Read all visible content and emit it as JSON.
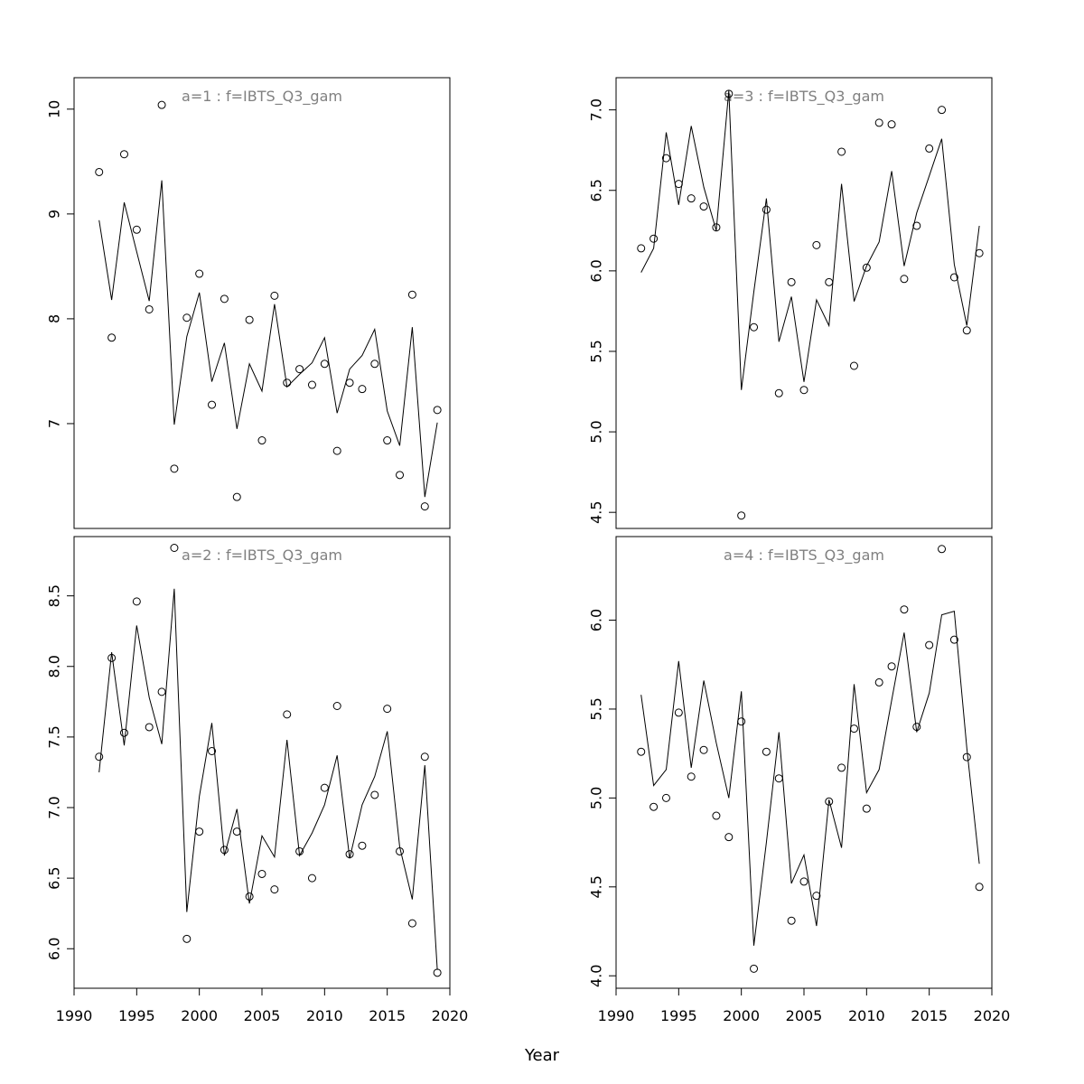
{
  "xlabel": "Year",
  "chart_data": [
    {
      "type": "line",
      "title": "a=1  :  f=IBTS_Q3_gam",
      "xlim": [
        1990,
        2020
      ],
      "ylim": [
        6.0,
        10.3
      ],
      "yticks": [
        7,
        8,
        9,
        10
      ],
      "ytick_labels": [
        "7",
        "8",
        "9",
        "10"
      ],
      "xticks": [],
      "xtick_labels": [],
      "x": [
        1992,
        1993,
        1994,
        1995,
        1996,
        1997,
        1998,
        1999,
        2000,
        2001,
        2002,
        2003,
        2004,
        2005,
        2006,
        2007,
        2008,
        2009,
        2010,
        2011,
        2012,
        2013,
        2014,
        2015,
        2016,
        2017,
        2018,
        2019
      ],
      "fitted": [
        8.94,
        8.18,
        9.11,
        8.64,
        8.17,
        9.32,
        6.99,
        7.83,
        8.25,
        7.4,
        7.77,
        6.95,
        7.57,
        7.31,
        8.14,
        7.35,
        7.47,
        7.58,
        7.82,
        7.1,
        7.52,
        7.65,
        7.9,
        7.12,
        6.79,
        7.92,
        6.3,
        7.01
      ],
      "observed": [
        9.4,
        7.82,
        9.57,
        8.85,
        8.09,
        10.04,
        6.57,
        8.01,
        8.43,
        7.18,
        8.19,
        6.3,
        7.99,
        6.84,
        8.22,
        7.39,
        7.52,
        7.37,
        7.57,
        6.74,
        7.39,
        7.33,
        7.57,
        6.84,
        6.51,
        8.23,
        6.21,
        7.13
      ]
    },
    {
      "type": "line",
      "title": "a=3  :  f=IBTS_Q3_gam",
      "xlim": [
        1990,
        2020
      ],
      "ylim": [
        4.4,
        7.2
      ],
      "yticks": [
        4.5,
        5.0,
        5.5,
        6.0,
        6.5,
        7.0
      ],
      "ytick_labels": [
        "4.5",
        "5.0",
        "5.5",
        "6.0",
        "6.5",
        "7.0"
      ],
      "xticks": [],
      "xtick_labels": [],
      "x": [
        1992,
        1993,
        1994,
        1995,
        1996,
        1997,
        1998,
        1999,
        2000,
        2001,
        2002,
        2003,
        2004,
        2005,
        2006,
        2007,
        2008,
        2009,
        2010,
        2011,
        2012,
        2013,
        2014,
        2015,
        2016,
        2017,
        2018,
        2019
      ],
      "fitted": [
        5.99,
        6.14,
        6.86,
        6.41,
        6.9,
        6.52,
        6.25,
        7.12,
        5.26,
        5.87,
        6.45,
        5.56,
        5.84,
        5.31,
        5.82,
        5.66,
        6.54,
        5.81,
        6.03,
        6.18,
        6.62,
        6.03,
        6.36,
        6.59,
        6.82,
        6.04,
        5.66,
        6.28
      ],
      "observed": [
        6.14,
        6.2,
        6.7,
        6.54,
        6.45,
        6.4,
        6.27,
        7.1,
        4.48,
        5.65,
        6.38,
        5.24,
        5.93,
        5.26,
        6.16,
        5.93,
        6.74,
        5.41,
        6.02,
        6.92,
        6.91,
        5.95,
        6.28,
        6.76,
        7.0,
        5.96,
        5.63,
        6.11
      ]
    },
    {
      "type": "line",
      "title": "a=2  :  f=IBTS_Q3_gam",
      "xlim": [
        1990,
        2020
      ],
      "ylim": [
        5.72,
        8.92
      ],
      "yticks": [
        6.0,
        6.5,
        7.0,
        7.5,
        8.0,
        8.5
      ],
      "ytick_labels": [
        "6.0",
        "6.5",
        "7.0",
        "7.5",
        "8.0",
        "8.5"
      ],
      "xticks": [
        1990,
        1995,
        2000,
        2005,
        2010,
        2015,
        2020
      ],
      "xtick_labels": [
        "1990",
        "1995",
        "2000",
        "2005",
        "2010",
        "2015",
        "2020"
      ],
      "x": [
        1992,
        1993,
        1994,
        1995,
        1996,
        1997,
        1998,
        1999,
        2000,
        2001,
        2002,
        2003,
        2004,
        2005,
        2006,
        2007,
        2008,
        2009,
        2010,
        2011,
        2012,
        2013,
        2014,
        2015,
        2016,
        2017,
        2018,
        2019
      ],
      "fitted": [
        7.25,
        8.1,
        7.44,
        8.29,
        7.78,
        7.45,
        8.55,
        6.26,
        7.08,
        7.6,
        6.66,
        6.99,
        6.32,
        6.8,
        6.65,
        7.48,
        6.66,
        6.82,
        7.02,
        7.37,
        6.64,
        7.02,
        7.22,
        7.54,
        6.72,
        6.35,
        7.3,
        5.85
      ],
      "observed": [
        7.36,
        8.06,
        7.53,
        8.46,
        7.57,
        7.82,
        8.84,
        6.07,
        6.83,
        7.4,
        6.7,
        6.83,
        6.37,
        6.53,
        6.42,
        7.66,
        6.69,
        6.5,
        7.14,
        7.72,
        6.67,
        6.73,
        7.09,
        7.7,
        6.69,
        6.18,
        7.36,
        5.83
      ]
    },
    {
      "type": "line",
      "title": "a=4  :  f=IBTS_Q3_gam",
      "xlim": [
        1990,
        2020
      ],
      "ylim": [
        3.93,
        6.47
      ],
      "yticks": [
        4.0,
        4.5,
        5.0,
        5.5,
        6.0
      ],
      "ytick_labels": [
        "4.0",
        "4.5",
        "5.0",
        "5.5",
        "6.0"
      ],
      "xticks": [
        1990,
        1995,
        2000,
        2005,
        2010,
        2015,
        2020
      ],
      "xtick_labels": [
        "1990",
        "1995",
        "2000",
        "2005",
        "2010",
        "2015",
        "2020"
      ],
      "x": [
        1992,
        1993,
        1994,
        1995,
        1996,
        1997,
        1998,
        1999,
        2000,
        2001,
        2002,
        2003,
        2004,
        2005,
        2006,
        2007,
        2008,
        2009,
        2010,
        2011,
        2012,
        2013,
        2014,
        2015,
        2016,
        2017,
        2018,
        2019
      ],
      "fitted": [
        5.58,
        5.07,
        5.16,
        5.77,
        5.17,
        5.66,
        5.31,
        5.0,
        5.6,
        4.17,
        4.75,
        5.37,
        4.52,
        4.68,
        4.28,
        4.99,
        4.72,
        5.64,
        5.03,
        5.16,
        5.55,
        5.93,
        5.37,
        5.59,
        6.03,
        6.05,
        5.28,
        4.63
      ],
      "observed": [
        5.26,
        4.95,
        5.0,
        5.48,
        5.12,
        5.27,
        4.9,
        4.78,
        5.43,
        4.04,
        5.26,
        5.11,
        4.31,
        4.53,
        4.45,
        4.98,
        5.17,
        5.39,
        4.94,
        5.65,
        5.74,
        6.06,
        5.4,
        5.86,
        6.4,
        5.89,
        5.23,
        4.5
      ]
    }
  ]
}
